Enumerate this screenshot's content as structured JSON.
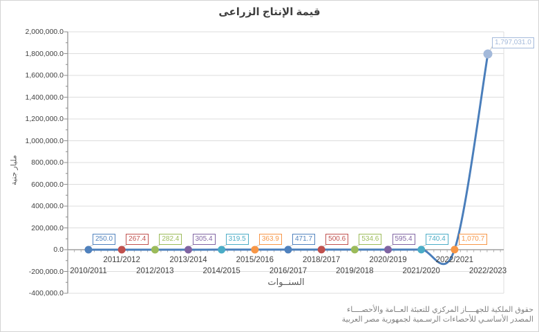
{
  "window": {
    "background": "#FFFFFF",
    "border_color": "#D3D3D3"
  },
  "chart_data": {
    "type": "line",
    "smooth": true,
    "grid": true,
    "legend": false,
    "title": "قيمة الإنتاج الزراعى",
    "xlabel": "السنــوات",
    "ylabel": "مليار جنية",
    "categories": [
      "2010/2011",
      "2011/2012",
      "2012/2013",
      "2013/2014",
      "2014/2015",
      "2015/2016",
      "2016/2017",
      "2018/2017",
      "2019/2018",
      "2020/2019",
      "2021/2020",
      "2022/2021",
      "2022/2023"
    ],
    "values": [
      250.0,
      267.4,
      282.4,
      305.4,
      319.5,
      363.9,
      471.7,
      500.6,
      534.6,
      595.4,
      740.4,
      1070.7,
      1797031.0
    ],
    "data_labels": [
      "250.0",
      "267.4",
      "282.4",
      "305.4",
      "319.5",
      "363.9",
      "471.7",
      "500.6",
      "534.6",
      "595.4",
      "740.4",
      "1,070.7",
      "1,797,031.0"
    ],
    "point_colors": [
      "#4F81BD",
      "#C0504D",
      "#9BBB59",
      "#8064A2",
      "#4BACC6",
      "#F79646",
      "#4F81BD",
      "#C0504D",
      "#9BBB59",
      "#8064A2",
      "#4BACC6",
      "#F79646",
      "#A3B9DA"
    ],
    "line_color": "#4A7EBB",
    "axis_color": "#8C8C8C",
    "gridline_color": "#DCDCDC",
    "minor_tick_color": "#ABABAB",
    "ylim": [
      -400000,
      2000000
    ],
    "ytick_step": 200000,
    "ytick_labels": [
      "2,000,000.0",
      "1,800,000.0",
      "1,600,000.0",
      "1,400,000.0",
      "1,200,000.0",
      "1,000,000.0",
      "800,000.0",
      "600,000.0",
      "400,000.0",
      "200,000.0",
      "0.0",
      "-200,000.0",
      "-400,000.0"
    ]
  },
  "footer": {
    "line1": "حقوق الملكية للجهــــاز المركزي للتعبئة العــامة والأحصــــاء",
    "line2": "المصدر الأساسـي للأحصاءات الرسـمية لجمهورية مصر العربية"
  }
}
